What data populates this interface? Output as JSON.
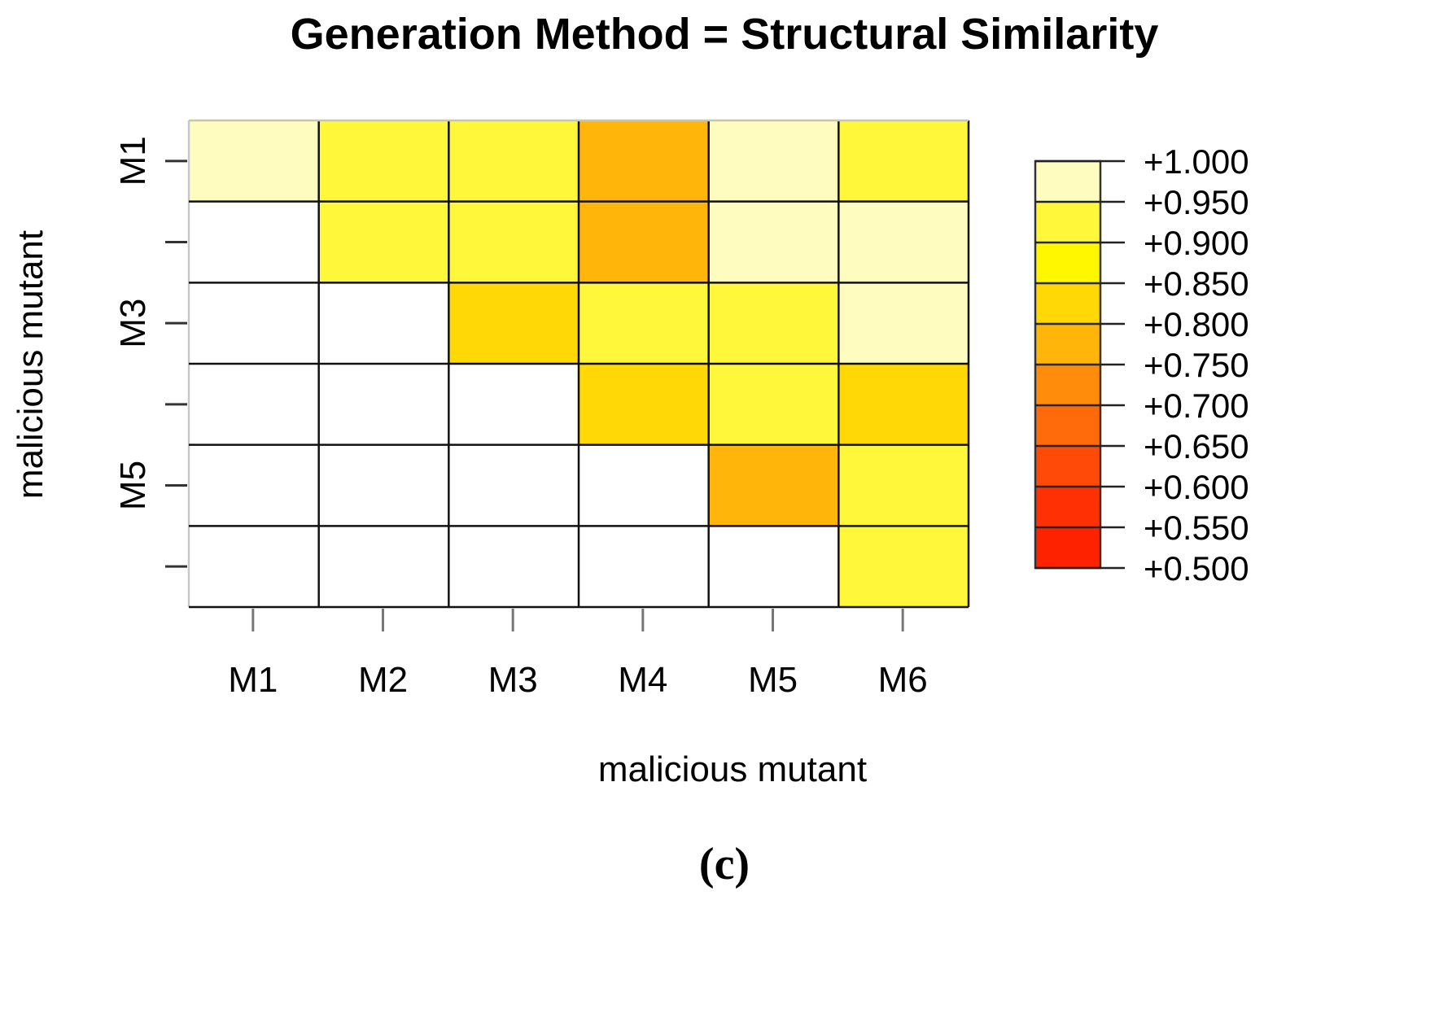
{
  "chart_data": {
    "type": "heatmap",
    "title": "Generation Method = Structural Similarity",
    "xlabel": "malicious mutant",
    "ylabel": "malicious mutant",
    "x_tick_labels": [
      "M1",
      "M2",
      "M3",
      "M4",
      "M5",
      "M6"
    ],
    "y_tick_labels": [
      "M1",
      "",
      "M3",
      "",
      "M5",
      ""
    ],
    "rows": 6,
    "cols": 6,
    "values": [
      [
        0.975,
        0.925,
        0.935,
        0.795,
        0.975,
        0.925
      ],
      [
        null,
        0.925,
        0.935,
        0.795,
        0.975,
        0.975
      ],
      [
        null,
        null,
        0.845,
        0.925,
        0.925,
        0.975
      ],
      [
        null,
        null,
        null,
        0.845,
        0.935,
        0.845
      ],
      [
        null,
        null,
        null,
        null,
        0.795,
        0.925
      ],
      [
        null,
        null,
        null,
        null,
        null,
        0.925
      ]
    ],
    "legend": {
      "placement": "right",
      "labels": [
        "+1.000",
        "+0.950",
        "+0.900",
        "+0.850",
        "+0.800",
        "+0.750",
        "+0.700",
        "+0.650",
        "+0.600",
        "+0.550",
        "+0.500"
      ],
      "bins": [
        {
          "lo": 0.95,
          "hi": 1.0,
          "color": "#FFFCC0"
        },
        {
          "lo": 0.9,
          "hi": 0.95,
          "color": "#FFF83A"
        },
        {
          "lo": 0.85,
          "hi": 0.9,
          "color": "#FFF700"
        },
        {
          "lo": 0.8,
          "hi": 0.85,
          "color": "#FFD805"
        },
        {
          "lo": 0.75,
          "hi": 0.8,
          "color": "#FFB50A"
        },
        {
          "lo": 0.7,
          "hi": 0.75,
          "color": "#FF8C0A"
        },
        {
          "lo": 0.65,
          "hi": 0.7,
          "color": "#FF6A0A"
        },
        {
          "lo": 0.6,
          "hi": 0.65,
          "color": "#FF4A08"
        },
        {
          "lo": 0.55,
          "hi": 0.6,
          "color": "#FF3004"
        },
        {
          "lo": 0.5,
          "hi": 0.55,
          "color": "#FF2200"
        }
      ]
    },
    "grid": true
  },
  "caption": "(c)"
}
